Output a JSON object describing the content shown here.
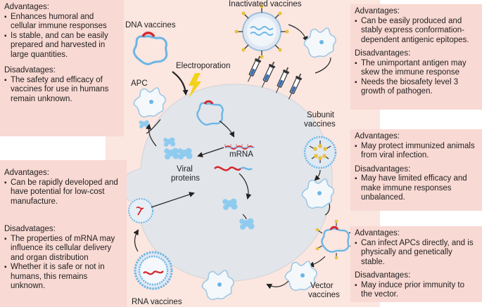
{
  "labels": {
    "dna_vaccines": "DNA vaccines",
    "electroporation": "Electroporation",
    "apc": "APC",
    "mrna": "mRNA",
    "viral_proteins_1": "Viral",
    "viral_proteins_2": "proteins",
    "inactivated_vaccines": "Inactivated vaccines",
    "subunit_vaccines_1": "Subunit",
    "subunit_vaccines_2": "vaccines",
    "vector_vaccines_1": "Vector",
    "vector_vaccines_2": "vaccines",
    "rna_vaccines": "RNA vaccines"
  },
  "boxes": {
    "dna": {
      "adv_title": "Advantages:",
      "adv": [
        "Enhances humoral and cellular immune responses",
        "Is stable, and can be easily prepared and harvested in large quantities."
      ],
      "dis_title": "Disadvatages:",
      "dis": [
        "The safety and efficacy of vaccines for use in humans remain unknown."
      ]
    },
    "rna": {
      "adv_title": "Advantages:",
      "adv": [
        "Can be rapidly developed and have potential for low-cost manufacture."
      ],
      "dis_title": "Disadvatages:",
      "dis": [
        "The properties of mRNA may influence its cellular delivery and organ distribution",
        "Whether it is safe or not in humans, this remains unknown."
      ]
    },
    "inactivated": {
      "adv_title": "Advantages:",
      "adv": [
        "Can be easily produced and stably express conformation-dependent antigenic epitopes."
      ],
      "dis_title": "Disadvantages:",
      "dis": [
        "The unimportant antigen may skew the immune response",
        " Needs the biosafety level 3 growth of pathogen."
      ]
    },
    "subunit": {
      "adv_title": "Advantages:",
      "adv": [
        "May protect immunized animals from viral infection."
      ],
      "dis_title": "Disadvantages:",
      "dis": [
        "May have limited efficacy and make immune responses unbalanced."
      ]
    },
    "vector": {
      "adv_title": "Advantages:",
      "adv": [
        "Can infect APCs directly, and is physically and genetically stable."
      ],
      "dis_title": "Disadvantages:",
      "dis": [
        "May induce prior immunity to the vector."
      ]
    }
  },
  "colors": {
    "box_fill": "#f9d9d3",
    "background_glow": "#fbe6e0",
    "cell_fill": "#e2e5ea",
    "plasmid": "#6ab6e6",
    "insert": "#d6282e",
    "lightning": "#f2d21a",
    "protein": "#8fcbef"
  }
}
